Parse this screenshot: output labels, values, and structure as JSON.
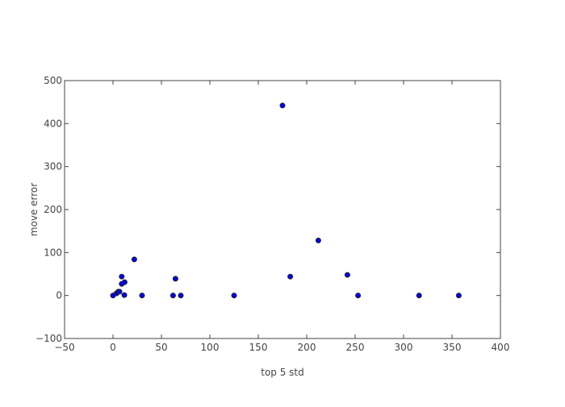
{
  "chart_data": {
    "type": "scatter",
    "title": "",
    "xlabel": "top 5 std",
    "ylabel": "move error",
    "xlim": [
      -50,
      400
    ],
    "ylim": [
      -100,
      500
    ],
    "xticks": [
      -50,
      0,
      50,
      100,
      150,
      200,
      250,
      300,
      350,
      400
    ],
    "yticks": [
      -100,
      0,
      100,
      200,
      300,
      400,
      500
    ],
    "xtick_labels": [
      "−50",
      "0",
      "50",
      "100",
      "150",
      "200",
      "250",
      "300",
      "350",
      "400"
    ],
    "ytick_labels": [
      "−100",
      "0",
      "100",
      "200",
      "300",
      "400",
      "500"
    ],
    "grid": false,
    "marker_color": "#0000ff",
    "marker_edge_color": "#222222",
    "points": [
      {
        "x": 0,
        "y": 0
      },
      {
        "x": 3.6,
        "y": 5
      },
      {
        "x": 5.5,
        "y": 9
      },
      {
        "x": 6.7,
        "y": 9
      },
      {
        "x": 9,
        "y": 27
      },
      {
        "x": 9,
        "y": 44
      },
      {
        "x": 12,
        "y": 31
      },
      {
        "x": 11.7,
        "y": 1
      },
      {
        "x": 22,
        "y": 84
      },
      {
        "x": 30,
        "y": 0
      },
      {
        "x": 62,
        "y": 0
      },
      {
        "x": 64.5,
        "y": 39
      },
      {
        "x": 70,
        "y": 0
      },
      {
        "x": 125,
        "y": 0
      },
      {
        "x": 175,
        "y": 442
      },
      {
        "x": 183,
        "y": 44
      },
      {
        "x": 212,
        "y": 128
      },
      {
        "x": 242,
        "y": 48
      },
      {
        "x": 253,
        "y": 0
      },
      {
        "x": 316,
        "y": 0
      },
      {
        "x": 357,
        "y": 0
      }
    ]
  }
}
